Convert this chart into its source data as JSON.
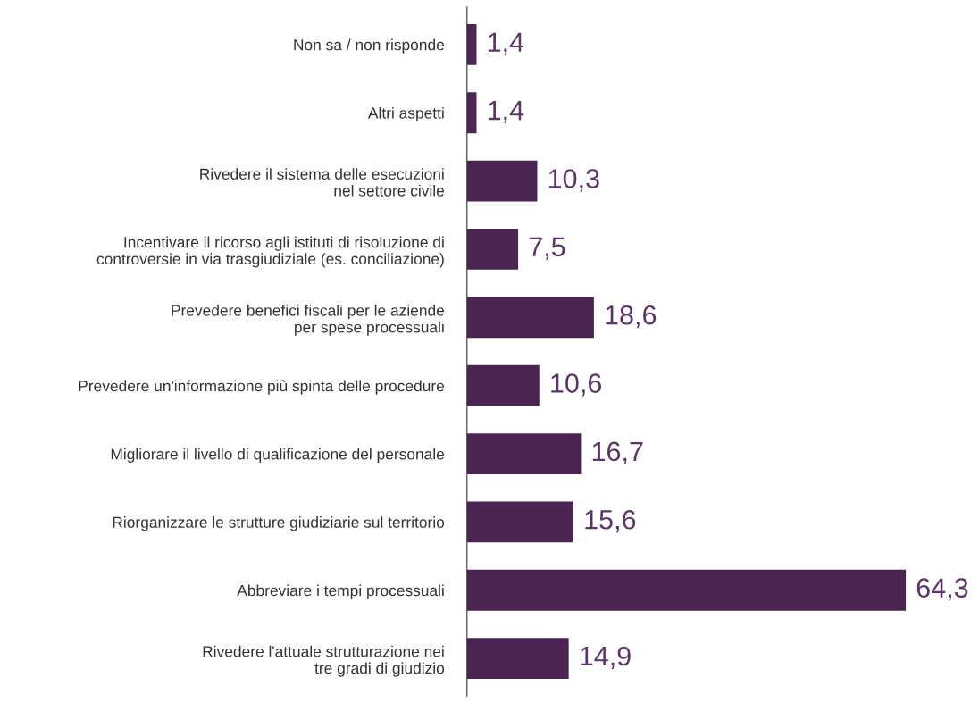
{
  "chart_data": {
    "type": "bar",
    "orientation": "horizontal",
    "categories": [
      "Non sa / non risponde",
      "Altri aspetti",
      "Rivedere il sistema delle esecuzioni\nnel settore civile",
      "Incentivare il ricorso agli istituti di risoluzione di\ncontroversie in via trasgiudiziale (es. conciliazione)",
      "Prevedere benefici fiscali per le aziende\nper spese processuali",
      "Prevedere un'informazione più spinta delle procedure",
      "Migliorare il livello di qualificazione del personale",
      "Riorganizzare le strutture giudiziarie sul territorio",
      "Abbreviare i tempi processuali",
      "Rivedere l'attuale strutturazione nei\ntre gradi di giudizio"
    ],
    "values": [
      1.4,
      1.4,
      10.3,
      7.5,
      18.6,
      10.6,
      16.7,
      15.6,
      64.3,
      14.9
    ],
    "value_labels": [
      "1,4",
      "1,4",
      "10,3",
      "7,5",
      "18,6",
      "10,6",
      "16,7",
      "15,6",
      "64,3",
      "14,9"
    ],
    "color": "#4a2552",
    "grid": false,
    "legend": false
  }
}
